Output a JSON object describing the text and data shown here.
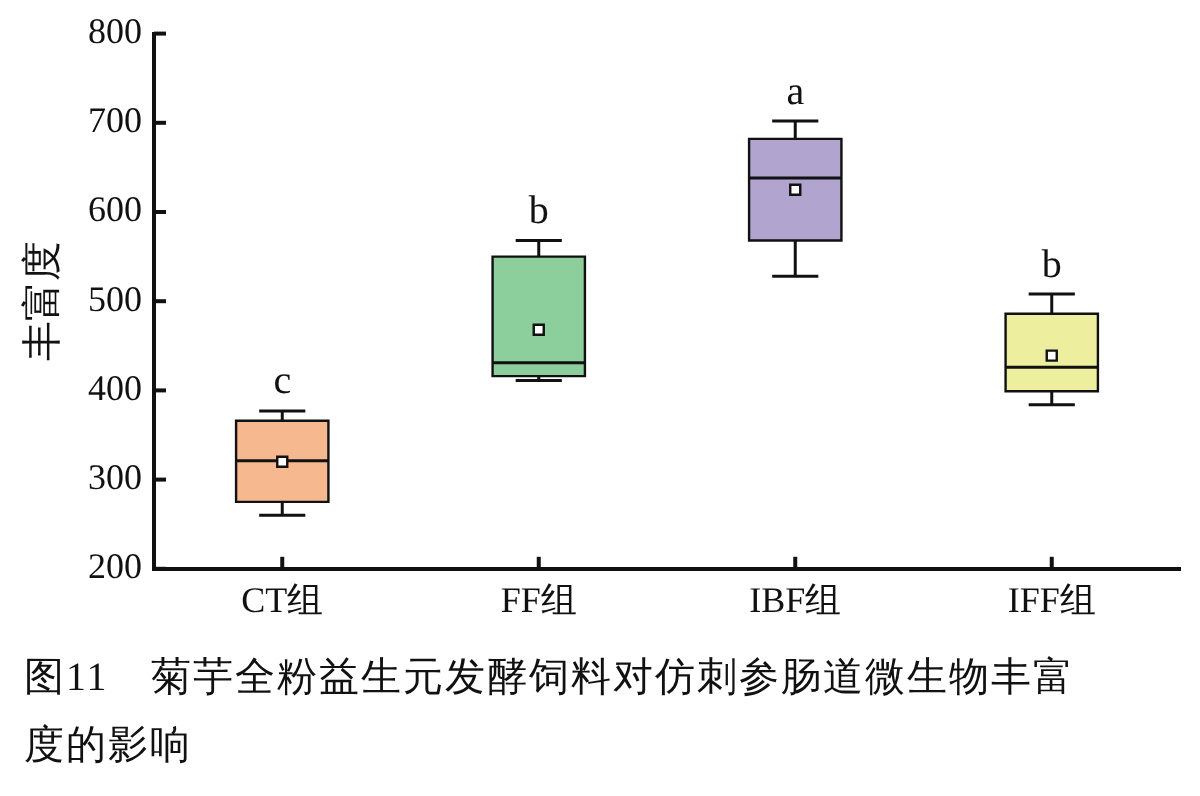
{
  "chart_data": {
    "type": "box",
    "title": "图11　菊芋全粉益生元发酵饲料对仿刺参肠道微生物丰富度的影响",
    "ylabel": "丰富度",
    "categories": [
      "CT组",
      "FF组",
      "IBF组",
      "IFF组"
    ],
    "colors": [
      "#f5b88f",
      "#8ccf9c",
      "#b1a5cf",
      "#eeee9f"
    ],
    "boxes": [
      {
        "low": 260,
        "q1": 275,
        "median": 321,
        "q3": 366,
        "high": 377,
        "mean": 320
      },
      {
        "low": 411,
        "q1": 416,
        "median": 431,
        "q3": 550,
        "high": 568,
        "mean": 468
      },
      {
        "low": 528,
        "q1": 568,
        "median": 638,
        "q3": 682,
        "high": 702,
        "mean": 625
      },
      {
        "low": 384,
        "q1": 399,
        "median": 426,
        "q3": 486,
        "high": 508,
        "mean": 439
      }
    ],
    "annotations": [
      "c",
      "b",
      "a",
      "b"
    ],
    "ylim": [
      200,
      800
    ],
    "yticks": [
      200,
      300,
      400,
      500,
      600,
      700,
      800
    ],
    "grid": false,
    "legend": false
  }
}
